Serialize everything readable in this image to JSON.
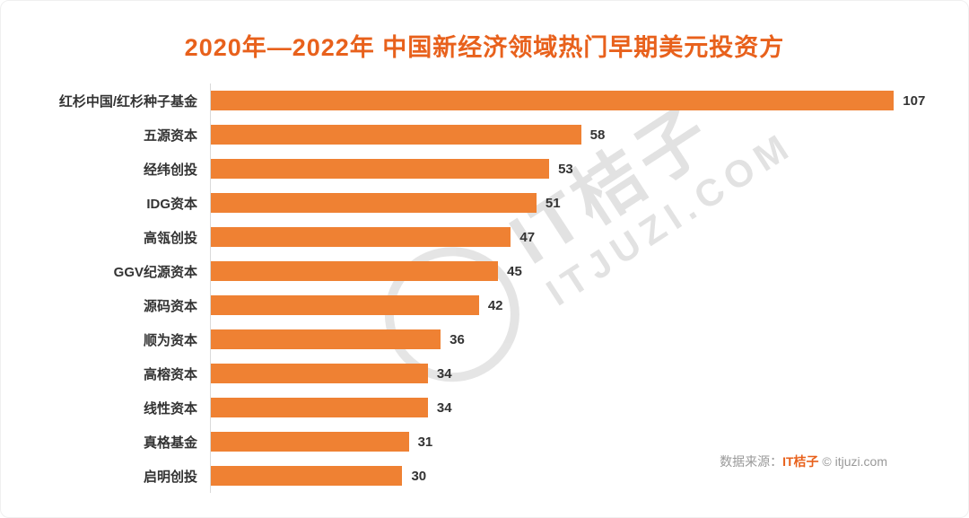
{
  "title": "2020年—2022年 中国新经济领域热门早期美元投资方",
  "chart_data": {
    "type": "bar",
    "orientation": "horizontal",
    "title": "2020年—2022年 中国新经济领域热门早期美元投资方",
    "categories": [
      "红杉中国/红杉种子基金",
      "五源资本",
      "经纬创投",
      "IDG资本",
      "高瓴创投",
      "GGV纪源资本",
      "源码资本",
      "顺为资本",
      "高榕资本",
      "线性资本",
      "真格基金",
      "启明创投"
    ],
    "values": [
      107,
      58,
      53,
      51,
      47,
      45,
      42,
      36,
      34,
      34,
      31,
      30
    ],
    "bar_color": "#ef8133",
    "xlabel": "",
    "ylabel": "",
    "xlim": [
      0,
      113
    ],
    "grid": false,
    "legend": false,
    "value_labels_shown": true
  },
  "watermark": {
    "line1": "IT桔子",
    "line2": "ITJUZI.COM"
  },
  "source": {
    "prefix": "数据来源：",
    "brand": "IT桔子",
    "suffix": " © itjuzi.com"
  },
  "colors": {
    "bar": "#ef8133",
    "title": "#e8611c",
    "label_text": "#333333",
    "source_text": "#999999",
    "watermark": "#d9d9d9",
    "axis_line": "#d9d9d9"
  }
}
